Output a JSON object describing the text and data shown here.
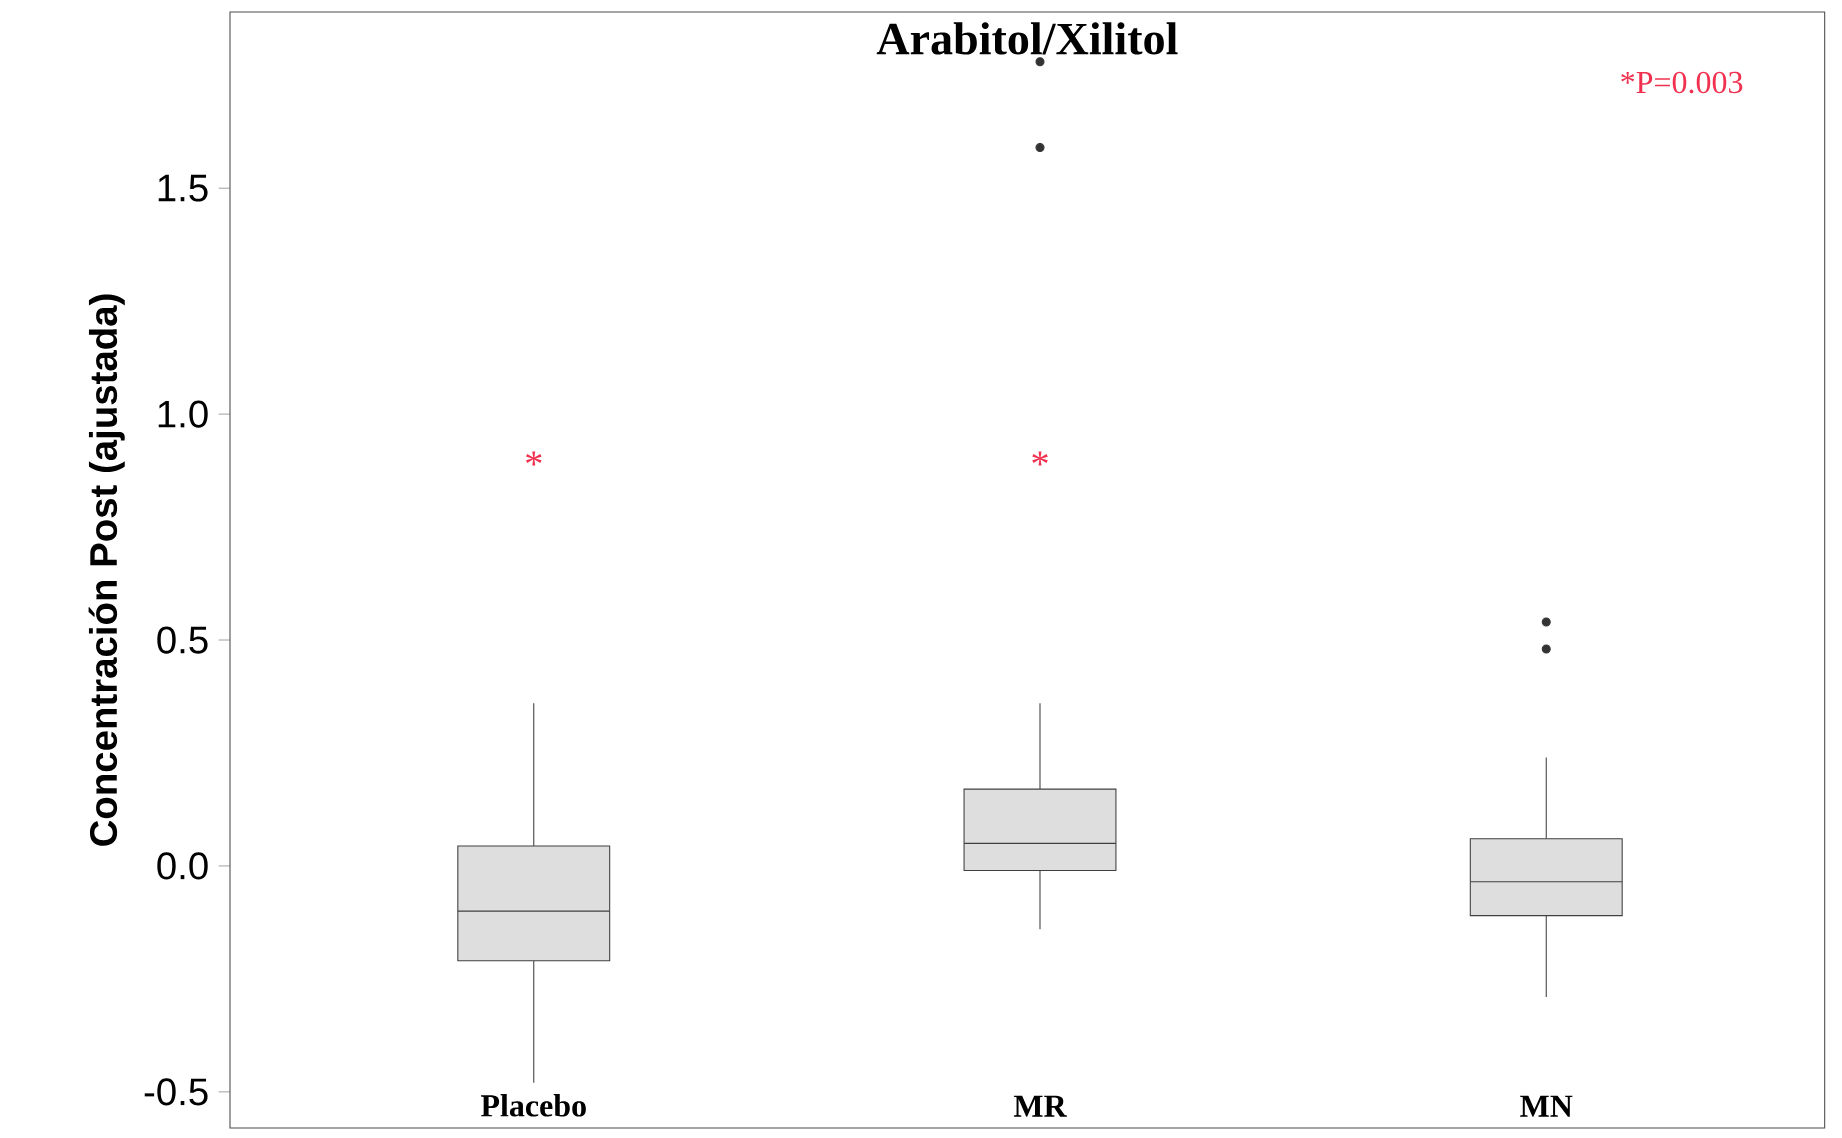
{
  "chart_data": {
    "type": "box",
    "title": "Arabitol/Xilitol",
    "ylabel": "Concentración Post (ajustada)",
    "categories": [
      "Placebo",
      "MR",
      "MN"
    ],
    "boxes": [
      {
        "low": -0.48,
        "q1": -0.21,
        "median": -0.1,
        "q3": 0.044,
        "high": 0.36
      },
      {
        "low": -0.14,
        "q1": -0.01,
        "median": 0.05,
        "q3": 0.17,
        "high": 0.36,
        "outliers": [
          1.59,
          1.78
        ]
      },
      {
        "low": -0.29,
        "q1": -0.11,
        "median": -0.035,
        "q3": 0.06,
        "high": 0.24,
        "outliers": [
          0.48,
          0.54
        ]
      }
    ],
    "color": "#dedede",
    "ylim": [
      -0.58,
      1.89
    ],
    "yticks": [
      -0.5,
      {
        "value": 0,
        "label": "0.0"
      },
      0.5,
      {
        "value": 1,
        "label": "1.0"
      },
      1.5
    ],
    "annotations": [
      "*",
      "*",
      "*P=0.003"
    ],
    "grid": false
  }
}
